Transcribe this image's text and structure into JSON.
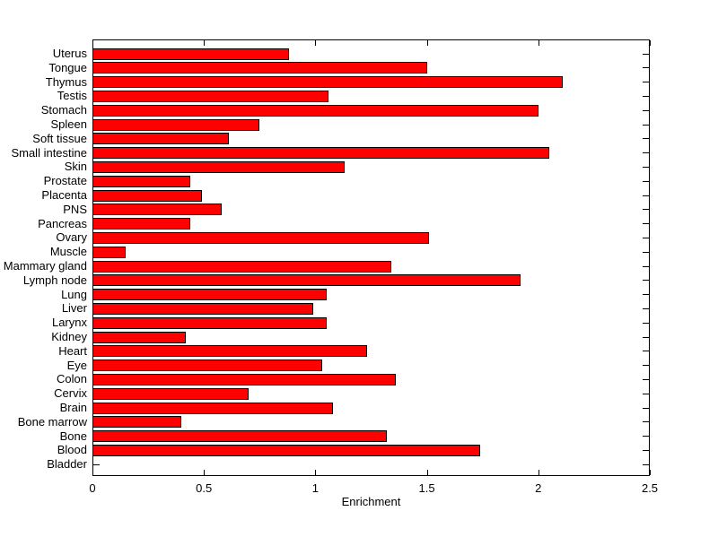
{
  "figure": {
    "background": "#ffffff"
  },
  "chart_data": {
    "type": "bar",
    "orientation": "horizontal",
    "title": "",
    "xlabel": "Enrichment",
    "ylabel": "",
    "xlim": [
      0,
      2.5
    ],
    "xticks": [
      0,
      0.5,
      1,
      1.5,
      2,
      2.5
    ],
    "xtick_labels": [
      "0",
      "0.5",
      "1",
      "1.5",
      "2",
      "2.5"
    ],
    "grid": false,
    "legend": "none",
    "bar_color": "#ff0000",
    "bar_edge_color": "#000000",
    "categories": [
      "Uterus",
      "Tongue",
      "Thymus",
      "Testis",
      "Stomach",
      "Spleen",
      "Soft tissue",
      "Small intestine",
      "Skin",
      "Prostate",
      "Placenta",
      "PNS",
      "Pancreas",
      "Ovary",
      "Muscle",
      "Mammary gland",
      "Lymph node",
      "Lung",
      "Liver",
      "Larynx",
      "Kidney",
      "Heart",
      "Eye",
      "Colon",
      "Cervix",
      "Brain",
      "Bone marrow",
      "Bone",
      "Blood",
      "Bladder"
    ],
    "values": [
      0.88,
      1.5,
      2.11,
      1.06,
      2.0,
      0.75,
      0.61,
      2.05,
      1.13,
      0.44,
      0.49,
      0.58,
      0.44,
      1.51,
      0.15,
      1.34,
      1.92,
      1.05,
      0.99,
      1.05,
      0.42,
      1.23,
      1.03,
      1.36,
      0.7,
      1.08,
      0.4,
      1.32,
      1.74,
      0
    ]
  }
}
